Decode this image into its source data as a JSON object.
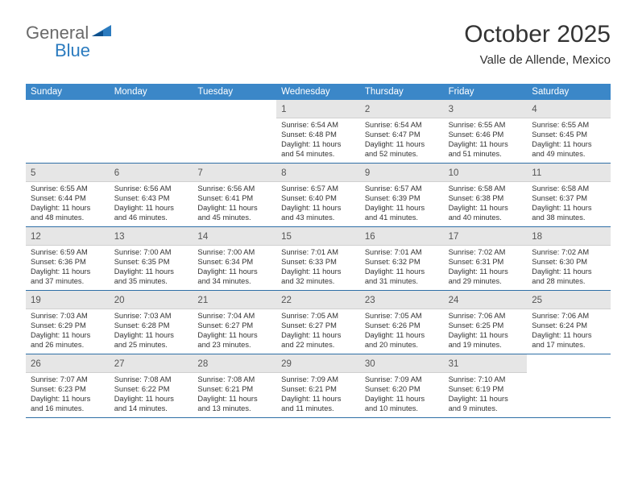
{
  "logo": {
    "text1": "General",
    "text2": "Blue"
  },
  "header": {
    "month_title": "October 2025",
    "location": "Valle de Allende, Mexico"
  },
  "colors": {
    "header_bg": "#3b87c8",
    "week_border": "#2f6fa6",
    "daynum_bg": "#e6e6e6",
    "text": "#333333",
    "logo_gray": "#6a6a6a",
    "logo_blue": "#2b7bbf"
  },
  "weekdays": [
    "Sunday",
    "Monday",
    "Tuesday",
    "Wednesday",
    "Thursday",
    "Friday",
    "Saturday"
  ],
  "weeks": [
    [
      {
        "n": "",
        "sr": "",
        "ss": "",
        "dl": ""
      },
      {
        "n": "",
        "sr": "",
        "ss": "",
        "dl": ""
      },
      {
        "n": "",
        "sr": "",
        "ss": "",
        "dl": ""
      },
      {
        "n": "1",
        "sr": "6:54 AM",
        "ss": "6:48 PM",
        "dl": "11 hours and 54 minutes."
      },
      {
        "n": "2",
        "sr": "6:54 AM",
        "ss": "6:47 PM",
        "dl": "11 hours and 52 minutes."
      },
      {
        "n": "3",
        "sr": "6:55 AM",
        "ss": "6:46 PM",
        "dl": "11 hours and 51 minutes."
      },
      {
        "n": "4",
        "sr": "6:55 AM",
        "ss": "6:45 PM",
        "dl": "11 hours and 49 minutes."
      }
    ],
    [
      {
        "n": "5",
        "sr": "6:55 AM",
        "ss": "6:44 PM",
        "dl": "11 hours and 48 minutes."
      },
      {
        "n": "6",
        "sr": "6:56 AM",
        "ss": "6:43 PM",
        "dl": "11 hours and 46 minutes."
      },
      {
        "n": "7",
        "sr": "6:56 AM",
        "ss": "6:41 PM",
        "dl": "11 hours and 45 minutes."
      },
      {
        "n": "8",
        "sr": "6:57 AM",
        "ss": "6:40 PM",
        "dl": "11 hours and 43 minutes."
      },
      {
        "n": "9",
        "sr": "6:57 AM",
        "ss": "6:39 PM",
        "dl": "11 hours and 41 minutes."
      },
      {
        "n": "10",
        "sr": "6:58 AM",
        "ss": "6:38 PM",
        "dl": "11 hours and 40 minutes."
      },
      {
        "n": "11",
        "sr": "6:58 AM",
        "ss": "6:37 PM",
        "dl": "11 hours and 38 minutes."
      }
    ],
    [
      {
        "n": "12",
        "sr": "6:59 AM",
        "ss": "6:36 PM",
        "dl": "11 hours and 37 minutes."
      },
      {
        "n": "13",
        "sr": "7:00 AM",
        "ss": "6:35 PM",
        "dl": "11 hours and 35 minutes."
      },
      {
        "n": "14",
        "sr": "7:00 AM",
        "ss": "6:34 PM",
        "dl": "11 hours and 34 minutes."
      },
      {
        "n": "15",
        "sr": "7:01 AM",
        "ss": "6:33 PM",
        "dl": "11 hours and 32 minutes."
      },
      {
        "n": "16",
        "sr": "7:01 AM",
        "ss": "6:32 PM",
        "dl": "11 hours and 31 minutes."
      },
      {
        "n": "17",
        "sr": "7:02 AM",
        "ss": "6:31 PM",
        "dl": "11 hours and 29 minutes."
      },
      {
        "n": "18",
        "sr": "7:02 AM",
        "ss": "6:30 PM",
        "dl": "11 hours and 28 minutes."
      }
    ],
    [
      {
        "n": "19",
        "sr": "7:03 AM",
        "ss": "6:29 PM",
        "dl": "11 hours and 26 minutes."
      },
      {
        "n": "20",
        "sr": "7:03 AM",
        "ss": "6:28 PM",
        "dl": "11 hours and 25 minutes."
      },
      {
        "n": "21",
        "sr": "7:04 AM",
        "ss": "6:27 PM",
        "dl": "11 hours and 23 minutes."
      },
      {
        "n": "22",
        "sr": "7:05 AM",
        "ss": "6:27 PM",
        "dl": "11 hours and 22 minutes."
      },
      {
        "n": "23",
        "sr": "7:05 AM",
        "ss": "6:26 PM",
        "dl": "11 hours and 20 minutes."
      },
      {
        "n": "24",
        "sr": "7:06 AM",
        "ss": "6:25 PM",
        "dl": "11 hours and 19 minutes."
      },
      {
        "n": "25",
        "sr": "7:06 AM",
        "ss": "6:24 PM",
        "dl": "11 hours and 17 minutes."
      }
    ],
    [
      {
        "n": "26",
        "sr": "7:07 AM",
        "ss": "6:23 PM",
        "dl": "11 hours and 16 minutes."
      },
      {
        "n": "27",
        "sr": "7:08 AM",
        "ss": "6:22 PM",
        "dl": "11 hours and 14 minutes."
      },
      {
        "n": "28",
        "sr": "7:08 AM",
        "ss": "6:21 PM",
        "dl": "11 hours and 13 minutes."
      },
      {
        "n": "29",
        "sr": "7:09 AM",
        "ss": "6:21 PM",
        "dl": "11 hours and 11 minutes."
      },
      {
        "n": "30",
        "sr": "7:09 AM",
        "ss": "6:20 PM",
        "dl": "11 hours and 10 minutes."
      },
      {
        "n": "31",
        "sr": "7:10 AM",
        "ss": "6:19 PM",
        "dl": "11 hours and 9 minutes."
      },
      {
        "n": "",
        "sr": "",
        "ss": "",
        "dl": ""
      }
    ]
  ],
  "labels": {
    "sunrise": "Sunrise:",
    "sunset": "Sunset:",
    "daylight": "Daylight:"
  }
}
